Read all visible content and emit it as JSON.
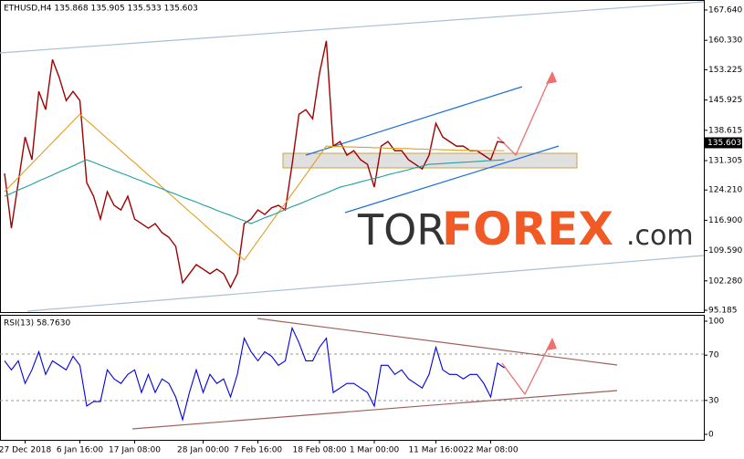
{
  "chart_data": [
    {
      "type": "line",
      "title": "ETHUSD,H4 135.868 135.905 135.533 135.603",
      "price_label": 135.603,
      "categories": [
        null,
        null,
        null,
        "27 Dec 2018",
        null,
        null,
        null,
        null,
        null,
        null,
        null,
        "6 Jan 16:00",
        null,
        null,
        null,
        null,
        null,
        null,
        null,
        "17 Jan 08:00",
        null,
        null,
        null,
        null,
        null,
        null,
        null,
        null,
        null,
        "28 Jan 00:00",
        null,
        null,
        null,
        null,
        null,
        null,
        null,
        "7 Feb 16:00",
        null,
        null,
        null,
        null,
        null,
        null,
        null,
        null,
        "18 Feb 08:00",
        null,
        null,
        null,
        null,
        null,
        null,
        null,
        "1 Mar 00:00",
        null,
        null,
        null,
        null,
        null,
        null,
        null,
        null,
        "11 Mar 16:00",
        null,
        null,
        null,
        null,
        null,
        null,
        null,
        "22 Mar 08:00",
        null,
        null
      ],
      "series": [
        {
          "color": "#a00000",
          "values": [
            128.2,
            115,
            126,
            137,
            131.5,
            148,
            143.6,
            155.7,
            151.3,
            145.8,
            148,
            145.8,
            126,
            122.7,
            117.2,
            123.8,
            120.5,
            119.4,
            122.7,
            117.2,
            116.1,
            115,
            116.1,
            113.9,
            112.8,
            110.6,
            101.8,
            104,
            106.2,
            105.1,
            104,
            105.1,
            104,
            100.7,
            104,
            116.1,
            117.2,
            119.4,
            118.3,
            119.9,
            120.5,
            119.4,
            130.4,
            142.5,
            143.6,
            141.4,
            152.4,
            160.2,
            134.8,
            135.9,
            132.6,
            133.7,
            131.5,
            130.4,
            124.9,
            134.8,
            135.9,
            133.7,
            133.7,
            131.5,
            130.4,
            129.3,
            132.6,
            140.3,
            137,
            135.9,
            134.8,
            134.8,
            133.7,
            133.7,
            132.6,
            131.5,
            135.9,
            135.6
          ]
        },
        {
          "color": "#e0a020",
          "values": [
            123.8,
            125.5,
            127.2,
            128.9,
            130.6,
            132.3,
            134.0,
            135.7,
            137.4,
            139.1,
            140.8,
            142.5,
            141.0,
            139.6,
            138.1,
            136.6,
            135.2,
            133.7,
            132.2,
            130.8,
            129.3,
            127.8,
            126.4,
            124.9,
            123.4,
            122.0,
            120.5,
            119.0,
            117.6,
            116.1,
            114.6,
            113.2,
            111.7,
            110.2,
            108.8,
            107.3,
            109.6,
            111.9,
            114.2,
            116.5,
            118.8,
            121.0,
            123.3,
            125.6,
            127.9,
            130.2,
            132.5,
            134.8,
            134.7,
            134.7,
            134.6,
            134.6,
            134.5,
            134.5,
            134.4,
            134.4,
            134.3,
            134.3,
            134.2,
            134.2,
            134.1,
            134.1,
            134.0,
            134.0,
            133.9,
            133.9,
            133.8,
            133.8,
            133.8,
            133.7,
            133.7,
            133.7,
            133.7,
            133.7
          ]
        },
        {
          "color": "#20a0a0",
          "values": [
            122.7,
            123.4,
            124.2,
            124.9,
            125.6,
            126.4,
            127.1,
            127.8,
            128.6,
            129.3,
            130.0,
            130.8,
            131.5,
            130.9,
            130.2,
            129.6,
            128.9,
            128.3,
            127.7,
            127.0,
            126.4,
            125.7,
            125.1,
            124.5,
            123.8,
            123.2,
            122.5,
            121.9,
            121.3,
            120.6,
            120.0,
            119.3,
            118.7,
            118.1,
            117.4,
            116.8,
            116.1,
            116.8,
            117.5,
            118.1,
            118.8,
            119.5,
            120.2,
            120.8,
            121.5,
            122.2,
            122.9,
            123.5,
            124.2,
            124.9,
            125.3,
            125.7,
            126.2,
            126.6,
            127.0,
            127.4,
            127.9,
            128.3,
            128.7,
            129.1,
            129.6,
            130.0,
            130.4,
            130.5,
            130.6,
            130.7,
            130.8,
            130.9,
            131.0,
            131.1,
            131.2,
            131.3,
            131.4,
            131.5
          ]
        }
      ],
      "ylim": [
        95.185,
        167.64
      ],
      "yticks": [
        {
          "value": 167.64,
          "label": "167.640"
        },
        {
          "value": 160.33,
          "label": "160.330"
        },
        153.225,
        145.925,
        138.615,
        131.305,
        {
          "value": 124.21,
          "label": "124.210"
        },
        {
          "value": 116.9,
          "label": "116.900"
        },
        {
          "value": 109.59,
          "label": "109.590"
        },
        {
          "value": 102.28,
          "label": "102.280"
        },
        95.185
      ]
    },
    {
      "type": "line",
      "title": "RSI(13) 58.7630",
      "series": [
        {
          "color": "#0000e0",
          "values": [
            65,
            57,
            65,
            45,
            57,
            73,
            53,
            65,
            61,
            57,
            69,
            61,
            25,
            29,
            29,
            57,
            49,
            45,
            53,
            57,
            37,
            53,
            37,
            49,
            45,
            33,
            13,
            37,
            57,
            37,
            53,
            45,
            49,
            33,
            53,
            85,
            73,
            65,
            73,
            69,
            61,
            65,
            94,
            81,
            65,
            65,
            77,
            85,
            37,
            41,
            45,
            45,
            41,
            37,
            25,
            61,
            61,
            53,
            57,
            49,
            45,
            41,
            53,
            77,
            57,
            53,
            53,
            49,
            53,
            53,
            45,
            33,
            63,
            58.763
          ]
        }
      ],
      "ylim": [
        0,
        100
      ],
      "yticks": [
        0,
        30,
        70,
        100
      ]
    }
  ],
  "watermark": {
    "prefix": "TOR",
    "main": "FOREX",
    "suffix": ".com"
  }
}
